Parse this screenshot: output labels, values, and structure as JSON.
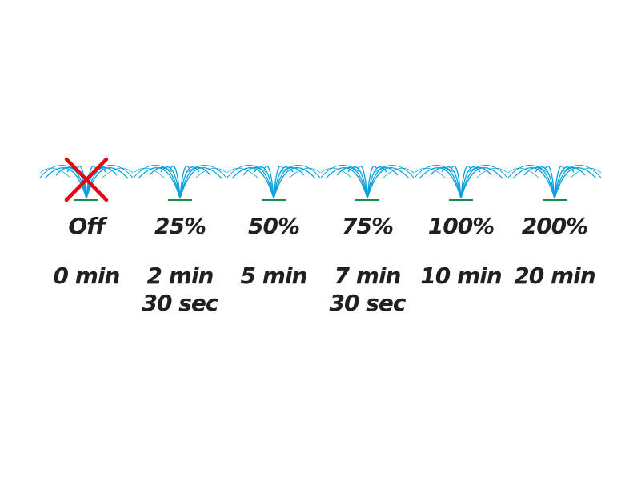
{
  "colors": {
    "spray": "#0aa0dc",
    "base": "#1a8a4a",
    "off_cross": "#e30613",
    "text": "#231f20"
  },
  "levels": [
    {
      "label": "Off",
      "time": [
        "0 min"
      ],
      "off": true
    },
    {
      "label": "25%",
      "time": [
        "2 min",
        "30 sec"
      ]
    },
    {
      "label": "50%",
      "time": [
        "5 min"
      ]
    },
    {
      "label": "75%",
      "time": [
        "7 min",
        "30 sec"
      ]
    },
    {
      "label": "100%",
      "time": [
        "10 min"
      ]
    },
    {
      "label": "200%",
      "time": [
        "20 min"
      ]
    }
  ]
}
